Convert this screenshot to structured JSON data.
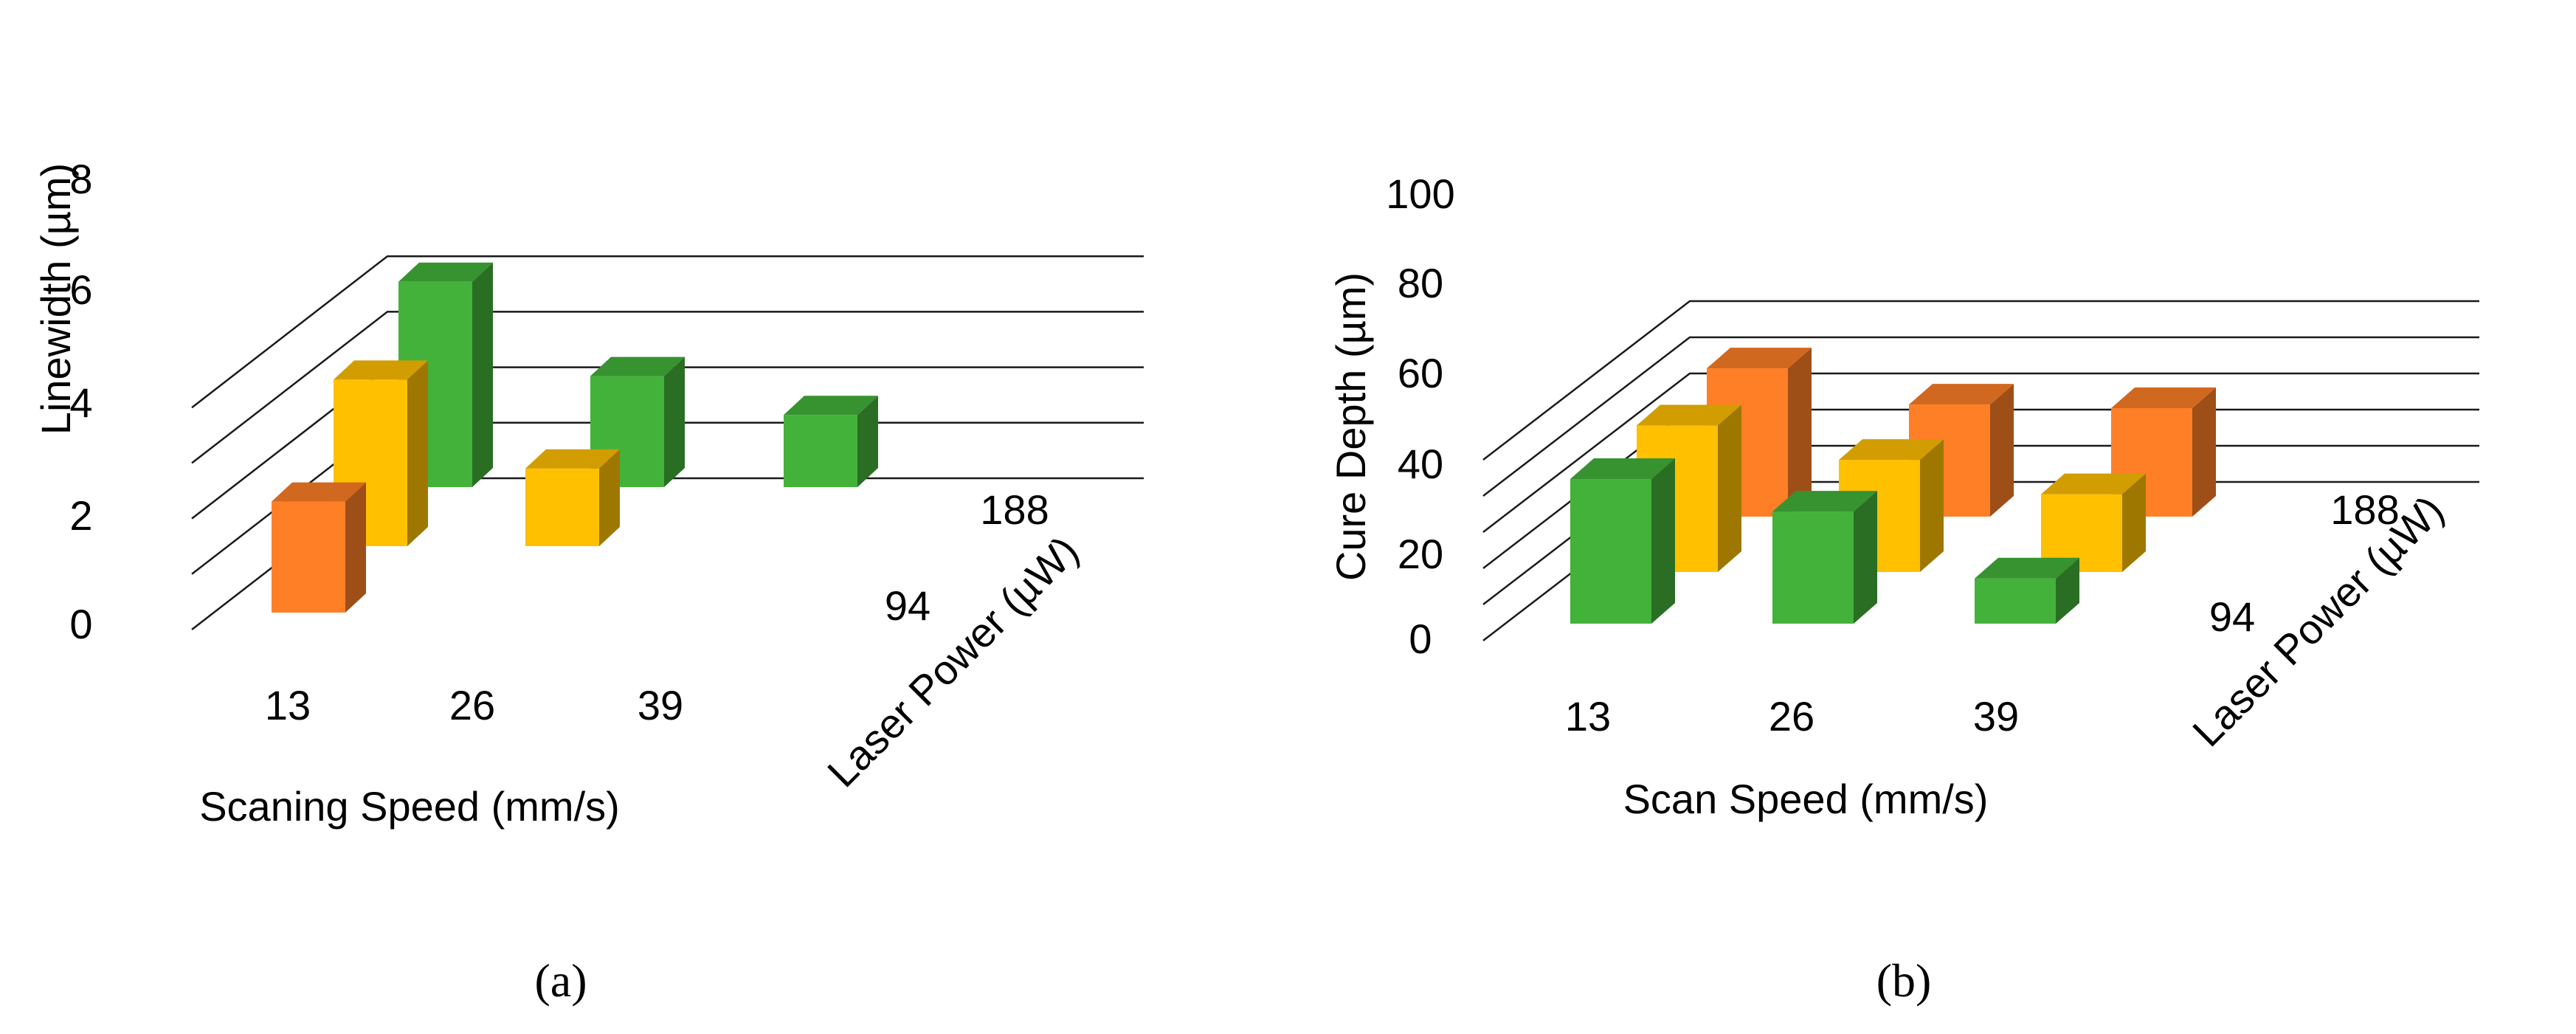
{
  "chart_data": [
    {
      "type": "bar",
      "panel_label": "(a)",
      "ylabel": "Linewidth (µm)",
      "xlabel": "Scaning Speed (mm/s)",
      "zlabel": "Laser Power (µW)",
      "categories": [
        "13",
        "26",
        "39"
      ],
      "depth_categories": [
        "94",
        "188"
      ],
      "y_ticks": [
        "0",
        "2",
        "4",
        "6",
        "8"
      ],
      "ylim": [
        0,
        8
      ],
      "series": [
        {
          "values": [
            4.0,
            null,
            null
          ],
          "color": "#FF7F27"
        },
        {
          "values": [
            6.0,
            2.8,
            null
          ],
          "color": "#FFC000"
        },
        {
          "values": [
            7.4,
            4.0,
            2.6
          ],
          "color": "#43B23A"
        }
      ]
    },
    {
      "type": "bar",
      "panel_label": "(b)",
      "ylabel": "Cure Depth (µm)",
      "xlabel": "Scan Speed (mm/s)",
      "zlabel": "Laser Power (µW)",
      "categories": [
        "13",
        "26",
        "39"
      ],
      "depth_categories": [
        "94",
        "188"
      ],
      "y_ticks": [
        "0",
        "20",
        "40",
        "60",
        "80",
        "100"
      ],
      "ylim": [
        0,
        100
      ],
      "series": [
        {
          "values": [
            80,
            62,
            25
          ],
          "color": "#43B23A"
        },
        {
          "values": [
            81,
            62,
            43
          ],
          "color": "#FFC000"
        },
        {
          "values": [
            82,
            62,
            60
          ],
          "color": "#FF7F27"
        }
      ]
    }
  ]
}
